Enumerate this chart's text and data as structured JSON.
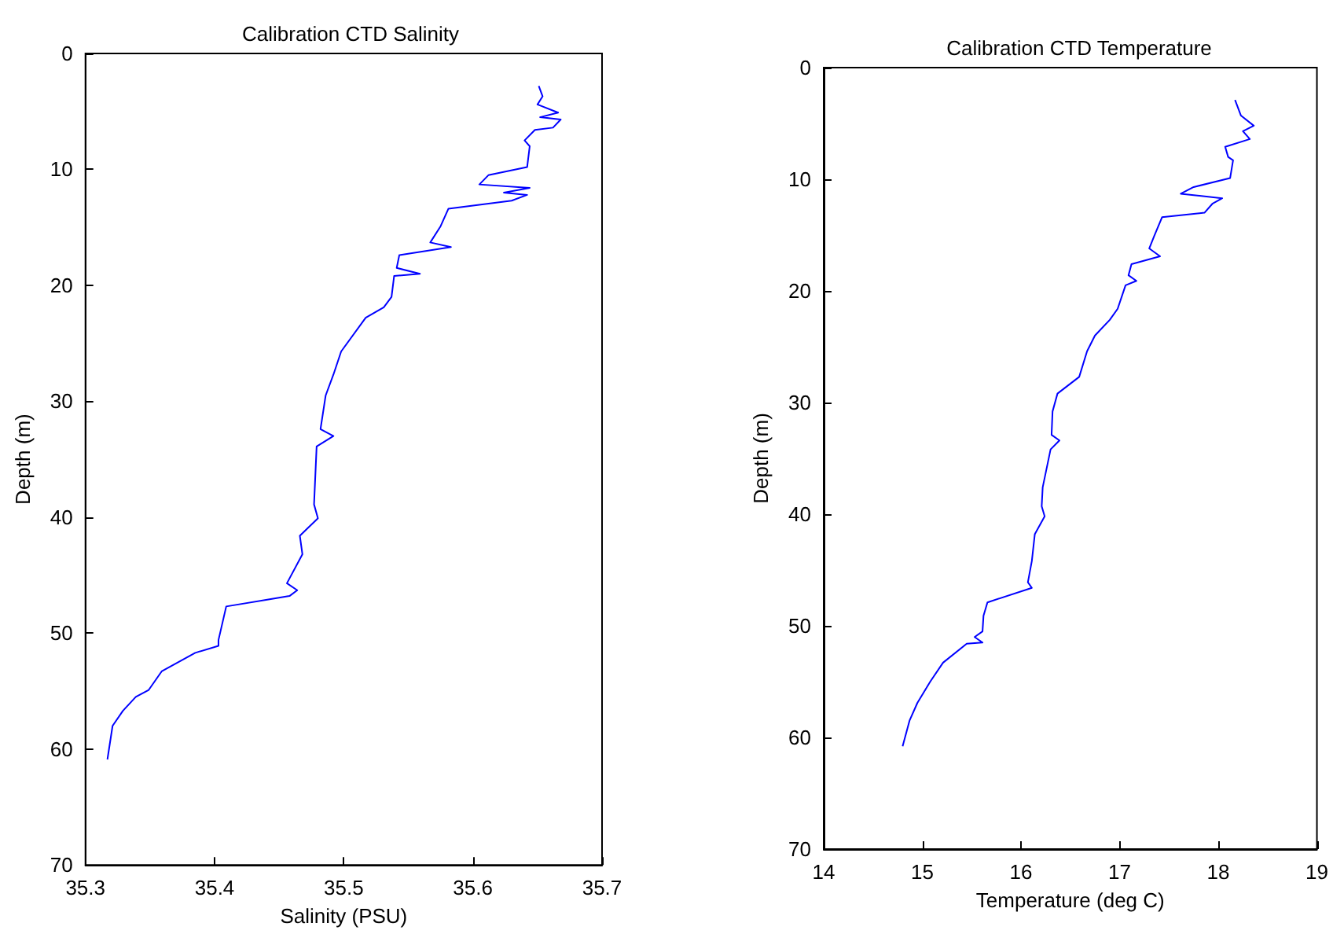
{
  "chart_data": [
    {
      "type": "line",
      "title": "Calibration CTD Salinity",
      "xlabel": "Salinity (PSU)",
      "ylabel": "Depth (m)",
      "xlim": [
        35.3,
        35.7
      ],
      "xticks": [
        35.3,
        35.4,
        35.5,
        35.6,
        35.7
      ],
      "ylim": [
        70,
        0
      ],
      "yticks": [
        0,
        10,
        20,
        30,
        40,
        50,
        60,
        70
      ],
      "marker": "none",
      "line_style": "solid",
      "series": [
        {
          "color": "#0000ff",
          "x": [
            35.651,
            35.654,
            35.65,
            35.666,
            35.652,
            35.668,
            35.662,
            35.648,
            35.64,
            35.644,
            35.642,
            35.612,
            35.605,
            35.644,
            35.624,
            35.642,
            35.63,
            35.581,
            35.575,
            35.567,
            35.583,
            35.543,
            35.541,
            35.559,
            35.539,
            35.537,
            35.531,
            35.517,
            35.498,
            35.492,
            35.486,
            35.482,
            35.492,
            35.479,
            35.477,
            35.48,
            35.466,
            35.468,
            35.456,
            35.464,
            35.458,
            35.409,
            35.403,
            35.403,
            35.385,
            35.359,
            35.349,
            35.339,
            35.329,
            35.321,
            35.317
          ],
          "values": [
            2.8,
            3.7,
            4.4,
            5.1,
            5.5,
            5.7,
            6.4,
            6.6,
            7.5,
            8.0,
            9.8,
            10.5,
            11.3,
            11.6,
            12.0,
            12.2,
            12.7,
            13.4,
            14.9,
            16.3,
            16.7,
            17.4,
            18.5,
            19.0,
            19.2,
            21.0,
            21.9,
            22.8,
            25.7,
            27.7,
            29.5,
            32.4,
            33.0,
            33.9,
            38.9,
            40.1,
            41.6,
            43.2,
            45.7,
            46.3,
            46.8,
            47.7,
            50.6,
            51.1,
            51.7,
            53.3,
            54.9,
            55.5,
            56.7,
            58.0,
            60.9
          ]
        }
      ]
    },
    {
      "type": "line",
      "title": "Calibration CTD Temperature",
      "xlabel": "Temperature (deg C)",
      "ylabel": "Depth (m)",
      "xlim": [
        14,
        19
      ],
      "xticks": [
        14,
        15,
        16,
        17,
        18,
        19
      ],
      "ylim": [
        70,
        0
      ],
      "yticks": [
        0,
        10,
        20,
        30,
        40,
        50,
        60,
        70
      ],
      "marker": "none",
      "line_style": "solid",
      "series": [
        {
          "color": "#0000ff",
          "x": [
            18.17,
            18.23,
            18.36,
            18.25,
            18.32,
            18.07,
            18.1,
            18.15,
            18.12,
            17.75,
            17.62,
            18.04,
            17.94,
            17.86,
            17.43,
            17.35,
            17.3,
            17.41,
            17.12,
            17.09,
            17.17,
            17.06,
            16.98,
            16.9,
            16.75,
            16.67,
            16.59,
            16.37,
            16.32,
            16.31,
            16.39,
            16.3,
            16.22,
            16.21,
            16.24,
            16.14,
            16.11,
            16.07,
            16.11,
            15.66,
            15.62,
            15.61,
            15.53,
            15.61,
            15.45,
            15.21,
            15.08,
            14.95,
            14.87,
            14.8
          ],
          "values": [
            2.9,
            4.3,
            5.2,
            5.7,
            6.4,
            7.1,
            8.0,
            8.3,
            9.9,
            10.7,
            11.3,
            11.7,
            12.2,
            13.0,
            13.4,
            15.1,
            16.2,
            16.9,
            17.6,
            18.6,
            19.1,
            19.5,
            21.6,
            22.6,
            24.0,
            25.4,
            27.7,
            29.2,
            30.8,
            32.9,
            33.4,
            34.2,
            37.6,
            39.3,
            40.2,
            41.8,
            44.2,
            46.1,
            46.6,
            47.9,
            49.1,
            50.5,
            51.0,
            51.5,
            51.6,
            53.3,
            55.0,
            56.9,
            58.5,
            60.8
          ]
        }
      ]
    }
  ]
}
